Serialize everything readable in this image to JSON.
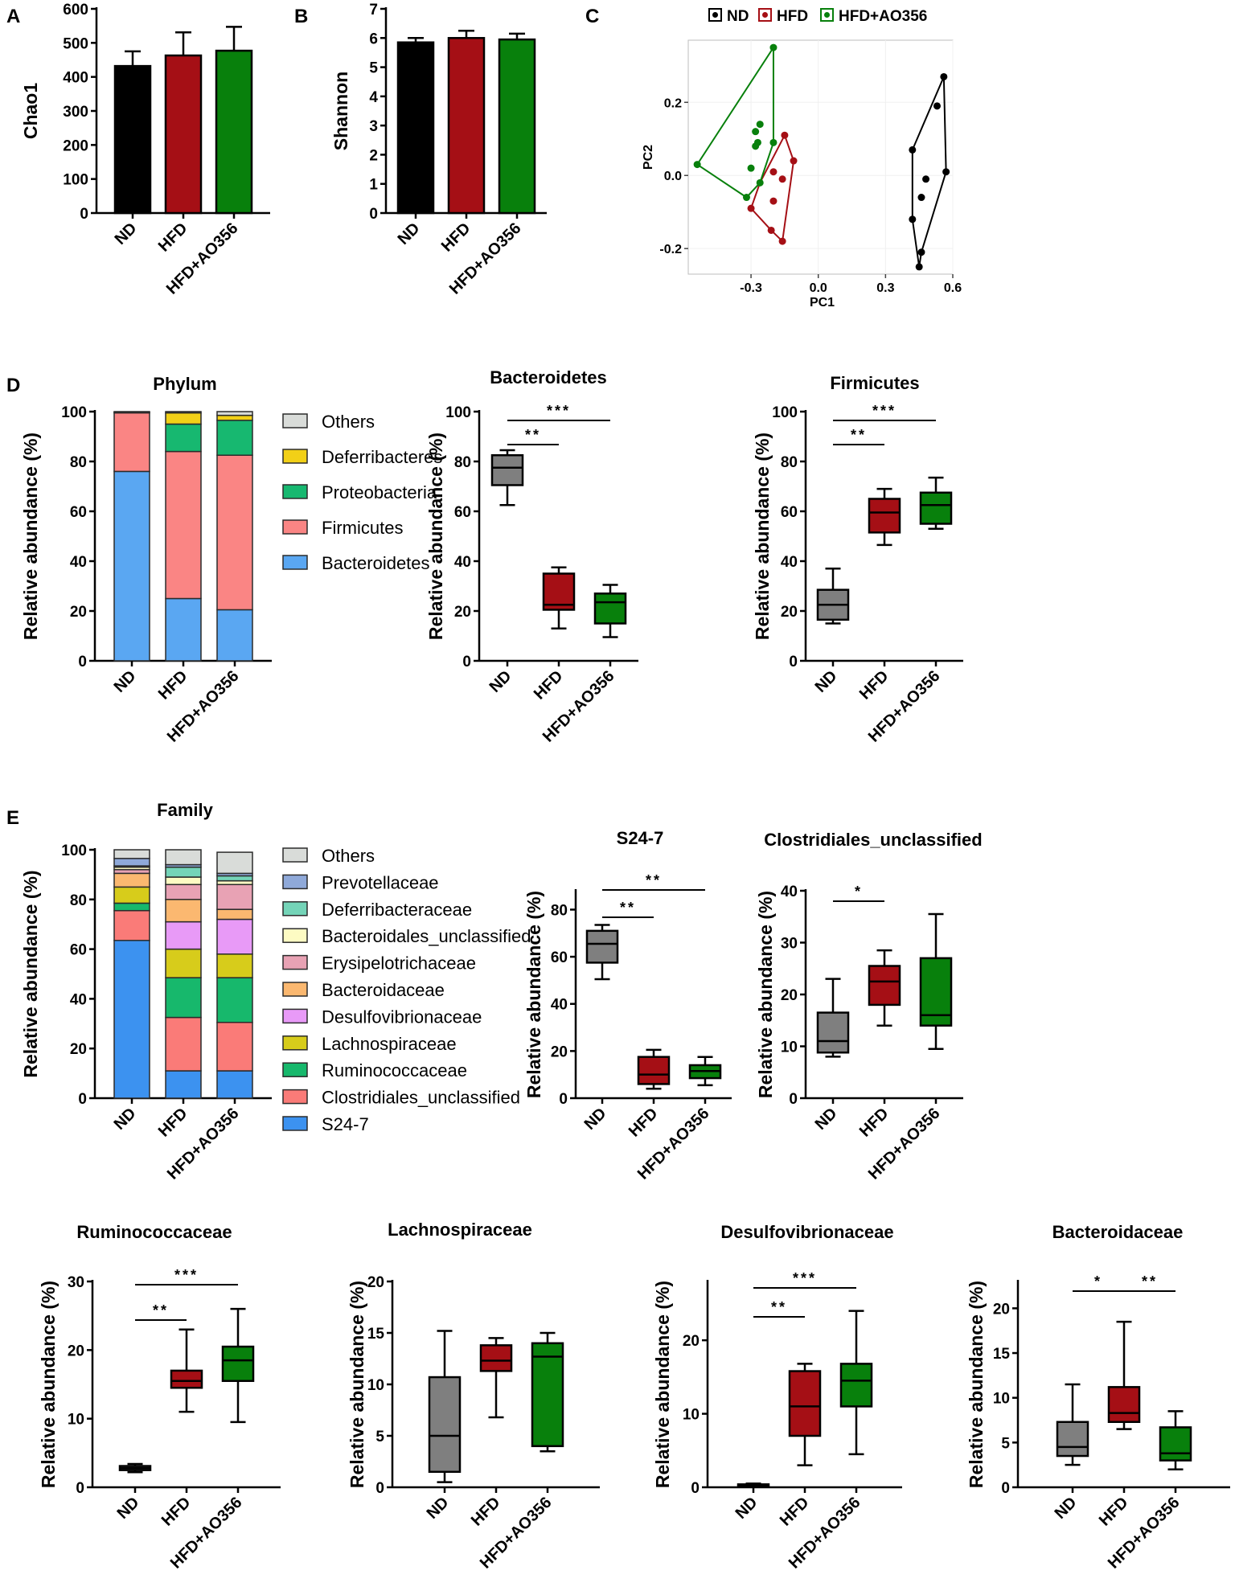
{
  "panel_labels": [
    "A",
    "B",
    "C",
    "D",
    "E"
  ],
  "colors": {
    "ND": "#000000",
    "HFD": "#a50f15",
    "AO": "#08800c",
    "box_ND": "#7f7f7f",
    "box_HFD": "#a50f15",
    "box_AO": "#08800c",
    "Others": "#d9dcd9",
    "Deferribacteres": "#f2d017",
    "Proteobacteria": "#17b870",
    "Firmicutes": "#fa8584",
    "Bacteroidetes": "#5aa7f2",
    "Prevotellaceae": "#8fa9d9",
    "Deferribacteraceae": "#74d4b8",
    "Bacteroidales_unclassified": "#fdfbc3",
    "Erysipelotrichaceae": "#e8a2b4",
    "Bacteroidaceae": "#fbb870",
    "Desulfovibrionaceae": "#e89af7",
    "Lachnospiraceae": "#d7cc1b",
    "Ruminococcaceae": "#17b86c",
    "Clostridiales_unclassified": "#fa7b78",
    "S24-7": "#3c92f0"
  },
  "chart_data": [
    {
      "id": "A",
      "type": "bar",
      "categories": [
        "ND",
        "HFD",
        "HFD+AO356"
      ],
      "values": [
        432,
        463,
        477
      ],
      "errors": [
        43,
        68,
        70
      ],
      "ylabel": "Chao1",
      "ylim": [
        0,
        600
      ],
      "yticks": [
        0,
        100,
        200,
        300,
        400,
        500,
        600
      ]
    },
    {
      "id": "B",
      "type": "bar",
      "categories": [
        "ND",
        "HFD",
        "HFD+AO356"
      ],
      "values": [
        5.85,
        6.0,
        5.95
      ],
      "errors": [
        0.15,
        0.25,
        0.2
      ],
      "ylabel": "Shannon",
      "ylim": [
        0,
        7
      ],
      "yticks": [
        0,
        1,
        2,
        3,
        4,
        5,
        6,
        7
      ]
    },
    {
      "id": "C",
      "type": "scatter",
      "xlabel": "PC1",
      "ylabel": "PC2",
      "xlim": [
        -0.58,
        0.6
      ],
      "ylim": [
        -0.27,
        0.37
      ],
      "xticks": [
        "-0.3",
        "0.0",
        "0.3",
        "0.6"
      ],
      "xtick_values": [
        -0.3,
        0,
        0.3,
        0.6
      ],
      "yticks": [
        "-0.2",
        "0.0",
        "0.2"
      ],
      "ytick_values": [
        -0.2,
        0,
        0.2
      ],
      "legend": [
        "ND",
        "HFD",
        "HFD+AO356"
      ],
      "series": [
        {
          "name": "ND",
          "points": [
            [
              0.56,
              0.27
            ],
            [
              0.53,
              0.19
            ],
            [
              0.42,
              0.07
            ],
            [
              0.57,
              0.01
            ],
            [
              0.48,
              -0.01
            ],
            [
              0.46,
              -0.06
            ],
            [
              0.42,
              -0.12
            ],
            [
              0.46,
              -0.21
            ],
            [
              0.45,
              -0.25
            ]
          ],
          "hull": [
            [
              0.56,
              0.27
            ],
            [
              0.57,
              0.01
            ],
            [
              0.46,
              -0.21
            ],
            [
              0.45,
              -0.25
            ],
            [
              0.42,
              -0.12
            ],
            [
              0.42,
              0.07
            ]
          ]
        },
        {
          "name": "HFD",
          "points": [
            [
              -0.15,
              0.11
            ],
            [
              -0.11,
              0.04
            ],
            [
              -0.2,
              0.01
            ],
            [
              -0.16,
              -0.01
            ],
            [
              -0.2,
              -0.07
            ],
            [
              -0.3,
              -0.09
            ],
            [
              -0.21,
              -0.15
            ],
            [
              -0.16,
              -0.18
            ]
          ],
          "hull": [
            [
              -0.15,
              0.11
            ],
            [
              -0.11,
              0.04
            ],
            [
              -0.16,
              -0.18
            ],
            [
              -0.21,
              -0.15
            ],
            [
              -0.3,
              -0.09
            ],
            [
              -0.26,
              -0.02
            ]
          ]
        },
        {
          "name": "HFD+AO356",
          "points": [
            [
              -0.2,
              0.35
            ],
            [
              -0.26,
              0.14
            ],
            [
              -0.28,
              0.12
            ],
            [
              -0.27,
              0.09
            ],
            [
              -0.28,
              0.08
            ],
            [
              -0.2,
              0.09
            ],
            [
              -0.3,
              0.02
            ],
            [
              -0.54,
              0.03
            ],
            [
              -0.26,
              -0.02
            ],
            [
              -0.32,
              -0.06
            ]
          ],
          "hull": [
            [
              -0.2,
              0.35
            ],
            [
              -0.2,
              0.09
            ],
            [
              -0.26,
              -0.02
            ],
            [
              -0.32,
              -0.06
            ],
            [
              -0.54,
              0.03
            ]
          ]
        }
      ]
    },
    {
      "id": "D-phylum",
      "type": "stacked_bar",
      "title": "Phylum",
      "ylabel": "Relative abundance (%)",
      "ylim": [
        0,
        100
      ],
      "yticks": [
        0,
        20,
        40,
        60,
        80,
        100
      ],
      "categories": [
        "ND",
        "HFD",
        "HFD+AO356"
      ],
      "series": [
        {
          "name": "Bacteroidetes",
          "values": [
            76,
            25,
            20.5
          ]
        },
        {
          "name": "Firmicutes",
          "values": [
            23.5,
            59,
            62
          ]
        },
        {
          "name": "Proteobacteria",
          "values": [
            0,
            11,
            14
          ]
        },
        {
          "name": "Deferribacteres",
          "values": [
            0.2,
            4.5,
            2
          ]
        },
        {
          "name": "Others",
          "values": [
            0.3,
            0.5,
            1.5
          ]
        }
      ],
      "legend": [
        "Others",
        "Deferribacteres",
        "Proteobacteria",
        "Firmicutes",
        "Bacteroidetes"
      ]
    },
    {
      "id": "D-bact",
      "type": "box",
      "title": "Bacteroidetes",
      "ylabel": "Relative abundance (%)",
      "ylim": [
        0,
        100
      ],
      "yticks": [
        0,
        20,
        40,
        60,
        80,
        100
      ],
      "categories": [
        "ND",
        "HFD",
        "HFD+AO356"
      ],
      "boxes": [
        [
          62.5,
          70.5,
          77.5,
          82.5,
          84.5
        ],
        [
          13,
          20.5,
          22.5,
          35,
          37.5
        ],
        [
          9.5,
          15,
          23.5,
          27,
          30.5
        ]
      ],
      "sig": [
        {
          "from": 0,
          "to": 1,
          "label": "**"
        },
        {
          "from": 0,
          "to": 2,
          "label": "***"
        }
      ]
    },
    {
      "id": "D-firm",
      "type": "box",
      "title": "Firmicutes",
      "ylabel": "Relative abundance (%)",
      "ylim": [
        0,
        100
      ],
      "yticks": [
        0,
        20,
        40,
        60,
        80,
        100
      ],
      "categories": [
        "ND",
        "HFD",
        "HFD+AO356"
      ],
      "boxes": [
        [
          15,
          16.5,
          22.5,
          28.5,
          37
        ],
        [
          46.5,
          51.5,
          59.5,
          65,
          69
        ],
        [
          53,
          55,
          62.5,
          67.5,
          73.5
        ]
      ],
      "sig": [
        {
          "from": 0,
          "to": 1,
          "label": "**"
        },
        {
          "from": 0,
          "to": 2,
          "label": "***"
        }
      ]
    },
    {
      "id": "E-family",
      "type": "stacked_bar",
      "title": "Family",
      "ylabel": "Relative abundance (%)",
      "ylim": [
        0,
        100
      ],
      "yticks": [
        0,
        20,
        40,
        60,
        80,
        100
      ],
      "categories": [
        "ND",
        "HFD",
        "HFD+AO356"
      ],
      "series": [
        {
          "name": "S24-7",
          "values": [
            63.5,
            11,
            11
          ]
        },
        {
          "name": "Clostridiales_unclassified",
          "values": [
            12,
            21.5,
            19.5
          ]
        },
        {
          "name": "Ruminococcaceae",
          "values": [
            3,
            16,
            18
          ]
        },
        {
          "name": "Lachnospiraceae",
          "values": [
            6.5,
            11.5,
            9.5
          ]
        },
        {
          "name": "Desulfovibrionaceae",
          "values": [
            0,
            11,
            14
          ]
        },
        {
          "name": "Bacteroidaceae",
          "values": [
            5.5,
            9,
            4
          ]
        },
        {
          "name": "Erysipelotrichaceae",
          "values": [
            1.5,
            6,
            10
          ]
        },
        {
          "name": "Bacteroidales_unclassified",
          "values": [
            1,
            3,
            1.5
          ]
        },
        {
          "name": "Deferribacteraceae",
          "values": [
            0.5,
            4,
            2
          ]
        },
        {
          "name": "Prevotellaceae",
          "values": [
            3,
            1,
            1
          ]
        },
        {
          "name": "Others",
          "values": [
            3.5,
            6,
            8.5
          ]
        }
      ],
      "legend": [
        "Others",
        "Prevotellaceae",
        "Deferribacteraceae",
        "Bacteroidales_unclassified",
        "Erysipelotrichaceae",
        "Bacteroidaceae",
        "Desulfovibrionaceae",
        "Lachnospiraceae",
        "Ruminococcaceae",
        "Clostridiales_unclassified",
        "S24-7"
      ]
    },
    {
      "id": "E-s247",
      "type": "box",
      "title": "S24-7",
      "ylabel": "Relative abundance (%)",
      "ylim": [
        0,
        88
      ],
      "yticks": [
        0,
        20,
        40,
        60,
        80
      ],
      "categories": [
        "ND",
        "HFD",
        "HFD+AO356"
      ],
      "boxes": [
        [
          50.5,
          57.5,
          65.5,
          71,
          73.5
        ],
        [
          4,
          6,
          10,
          17.5,
          20.5
        ],
        [
          5.5,
          8.5,
          11.5,
          14,
          17.5
        ]
      ],
      "sig": [
        {
          "from": 0,
          "to": 1,
          "label": "**"
        },
        {
          "from": 0,
          "to": 2,
          "label": "**"
        }
      ]
    },
    {
      "id": "E-clos",
      "type": "box",
      "title": "Clostridiales_unclassified",
      "ylabel": "Relative abundance (%)",
      "ylim": [
        0,
        40
      ],
      "yticks": [
        0,
        10,
        20,
        30,
        40
      ],
      "categories": [
        "ND",
        "HFD",
        "HFD+AO356"
      ],
      "boxes": [
        [
          8,
          8.8,
          11,
          16.5,
          23
        ],
        [
          14,
          18,
          22.5,
          25.5,
          28.5
        ],
        [
          9.5,
          14,
          16,
          27,
          35.5
        ]
      ],
      "sig": [
        {
          "from": 0,
          "to": 1,
          "label": "*"
        }
      ]
    },
    {
      "id": "E-rumi",
      "type": "box",
      "title": "Ruminococcaceae",
      "ylabel": "Relative abundance (%)",
      "ylim": [
        0,
        30
      ],
      "yticks": [
        0,
        10,
        20,
        30
      ],
      "categories": [
        "ND",
        "HFD",
        "HFD+AO356"
      ],
      "boxes": [
        [
          2.2,
          2.5,
          2.8,
          3.1,
          3.4
        ],
        [
          11,
          14.5,
          15.5,
          17,
          23
        ],
        [
          9.5,
          15.5,
          18.5,
          20.5,
          26
        ]
      ],
      "sig": [
        {
          "from": 0,
          "to": 1,
          "label": "**"
        },
        {
          "from": 0,
          "to": 2,
          "label": "***"
        }
      ]
    },
    {
      "id": "E-lach",
      "type": "box",
      "title": "Lachnospiraceae",
      "ylabel": "Relative abundance (%)",
      "ylim": [
        0,
        20
      ],
      "yticks": [
        0,
        5,
        10,
        15,
        20
      ],
      "categories": [
        "ND",
        "HFD",
        "HFD+AO356"
      ],
      "boxes": [
        [
          0.5,
          1.5,
          5,
          10.7,
          15.2
        ],
        [
          6.8,
          11.3,
          12.3,
          13.8,
          14.5
        ],
        [
          3.5,
          4,
          12.7,
          14,
          15
        ]
      ],
      "sig": []
    },
    {
      "id": "E-desu",
      "type": "box",
      "title": "Desulfovibrionaceae",
      "ylabel": "Relative abundance (%)",
      "ylim": [
        0,
        28
      ],
      "yticks": [
        0,
        10,
        20
      ],
      "categories": [
        "ND",
        "HFD",
        "HFD+AO356"
      ],
      "boxes": [
        [
          0.1,
          0.2,
          0.3,
          0.4,
          0.5
        ],
        [
          3,
          7,
          11,
          15.8,
          16.8
        ],
        [
          4.5,
          11,
          14.5,
          16.8,
          24
        ]
      ],
      "sig": [
        {
          "from": 0,
          "to": 1,
          "label": "**"
        },
        {
          "from": 0,
          "to": 2,
          "label": "***"
        }
      ]
    },
    {
      "id": "E-bacd",
      "type": "box",
      "title": "Bacteroidaceae",
      "ylabel": "Relative abundance (%)",
      "ylim": [
        0,
        23
      ],
      "yticks": [
        0,
        5,
        10,
        15,
        20
      ],
      "categories": [
        "ND",
        "HFD",
        "HFD+AO356"
      ],
      "boxes": [
        [
          2.5,
          3.5,
          4.5,
          7.3,
          11.5
        ],
        [
          6.5,
          7.3,
          8.3,
          11.2,
          18.5
        ],
        [
          2,
          3,
          3.8,
          6.7,
          8.5
        ]
      ],
      "sig": [
        {
          "from": 0,
          "to": 1,
          "label": "*"
        },
        {
          "from": 1,
          "to": 2,
          "label": "**"
        }
      ]
    }
  ]
}
